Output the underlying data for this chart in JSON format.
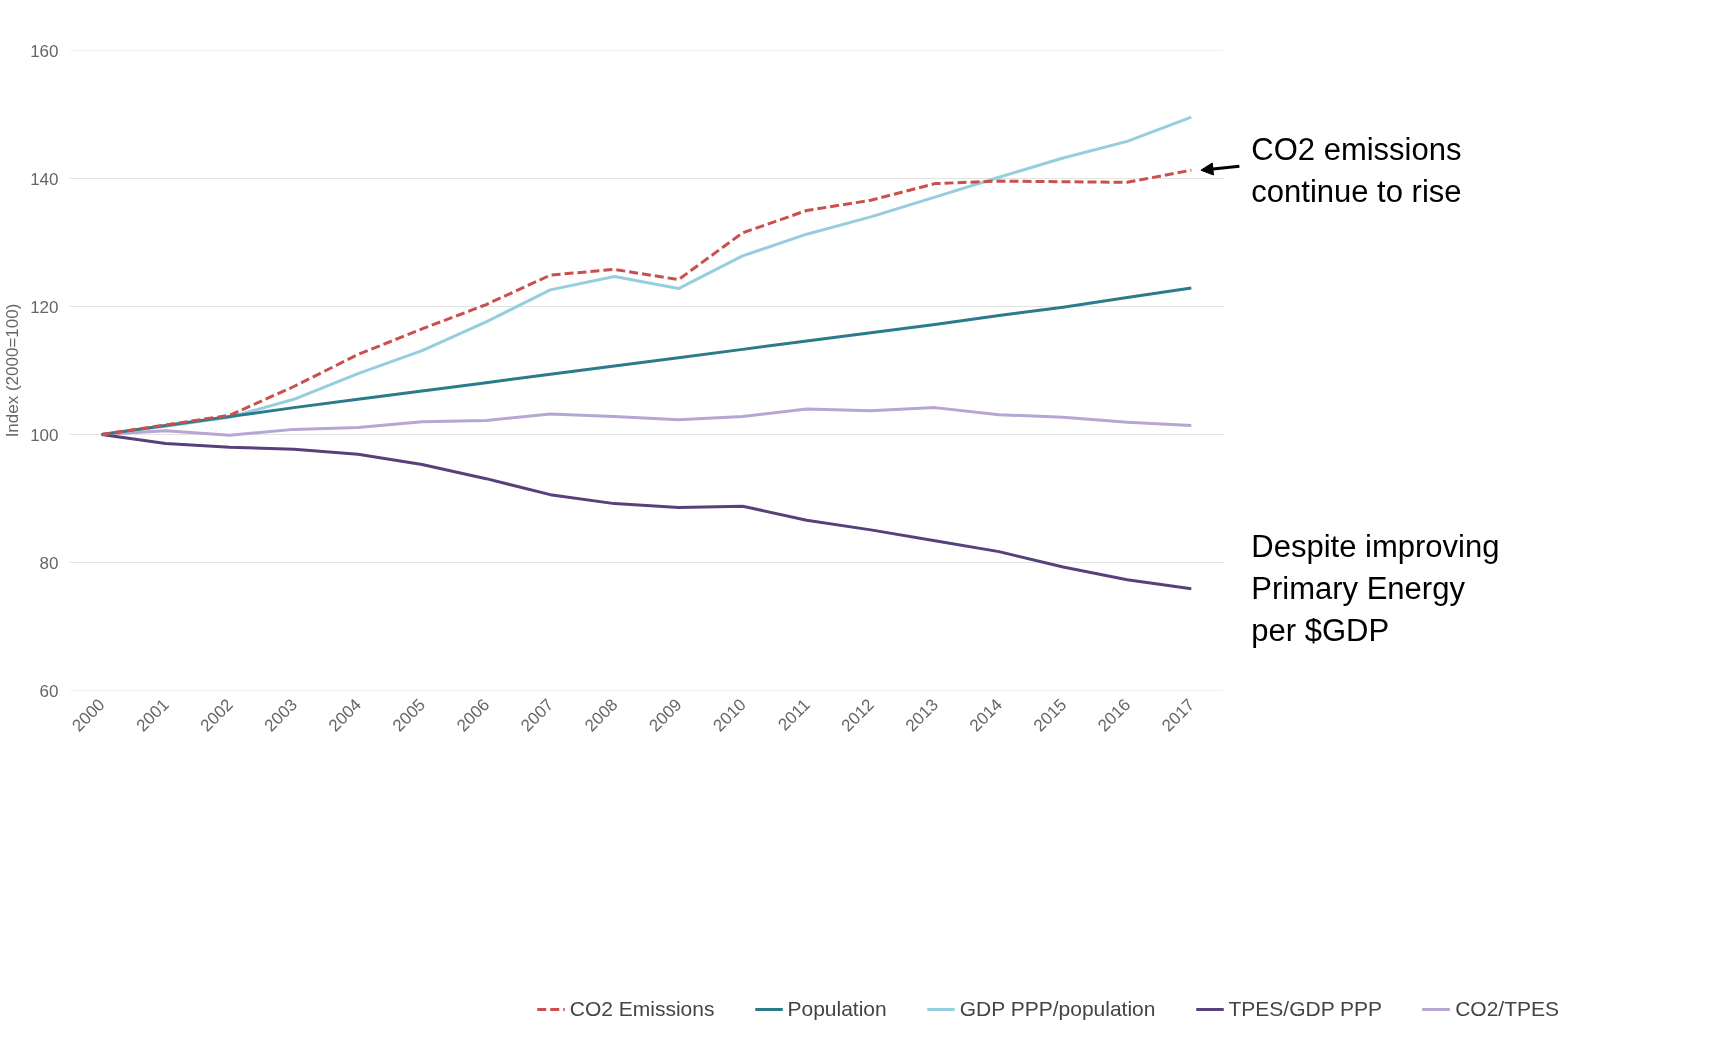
{
  "chart_data": {
    "type": "line",
    "ylabel": "Index (2000=100)",
    "x": [
      2000,
      2001,
      2002,
      2003,
      2004,
      2005,
      2006,
      2007,
      2008,
      2009,
      2010,
      2011,
      2012,
      2013,
      2014,
      2015,
      2016,
      2017
    ],
    "series": [
      {
        "name": "CO2 Emissions",
        "color": "#c9504c",
        "line_style": "dashed",
        "values": [
          100,
          101.5,
          103,
          107.5,
          112.5,
          116.5,
          120.3,
          124.9,
          125.8,
          124.2,
          131.5,
          135,
          136.6,
          139.2,
          139.6,
          139.5,
          139.4,
          141.3
        ]
      },
      {
        "name": "Population",
        "color": "#2b7b8a",
        "values": [
          100,
          101.4,
          102.8,
          104.2,
          105.5,
          106.8,
          108.1,
          109.4,
          110.7,
          112,
          113.3,
          114.6,
          115.9,
          117.2,
          118.6,
          119.9,
          121.4,
          122.9
        ]
      },
      {
        "name": "GDP PPP/population",
        "color": "#95cfdd",
        "values": [
          100,
          101.3,
          102.7,
          105.5,
          109.5,
          113.1,
          117.6,
          122.6,
          124.7,
          122.8,
          127.9,
          131.3,
          134,
          137.1,
          140.2,
          143.2,
          145.8,
          149.6
        ]
      },
      {
        "name": "TPES/GDP PPP",
        "color": "#58407a",
        "values": [
          100,
          98.6,
          98,
          97.7,
          96.9,
          95.3,
          93.1,
          90.6,
          89.2,
          88.6,
          88.8,
          86.6,
          85.1,
          83.4,
          81.7,
          79.3,
          77.3,
          75.9
        ]
      },
      {
        "name": "CO2/TPES",
        "color": "#b7a5d3",
        "values": [
          100,
          100.6,
          99.9,
          100.8,
          101.1,
          102,
          102.2,
          103.2,
          102.8,
          102.3,
          102.8,
          104,
          103.7,
          104.2,
          103.1,
          102.7,
          101.9,
          101.4
        ]
      }
    ],
    "xlim": [
      1999.5,
      2017.5
    ],
    "xticks": [
      2000,
      2001,
      2002,
      2003,
      2004,
      2005,
      2006,
      2007,
      2008,
      2009,
      2010,
      2011,
      2012,
      2013,
      2014,
      2015,
      2016,
      2017
    ],
    "ylim": [
      60,
      160
    ],
    "yticks": [
      60,
      80,
      100,
      120,
      140,
      160
    ],
    "grid": "y",
    "legend": "bottom",
    "annotations": [
      {
        "text": "CO2 emissions\ncontinue to rise",
        "x": 2017,
        "y": 141.3
      },
      {
        "text": "Despite improving\nPrimary Energy\nper $GDP",
        "x": 2017,
        "y": 75.9
      }
    ]
  }
}
